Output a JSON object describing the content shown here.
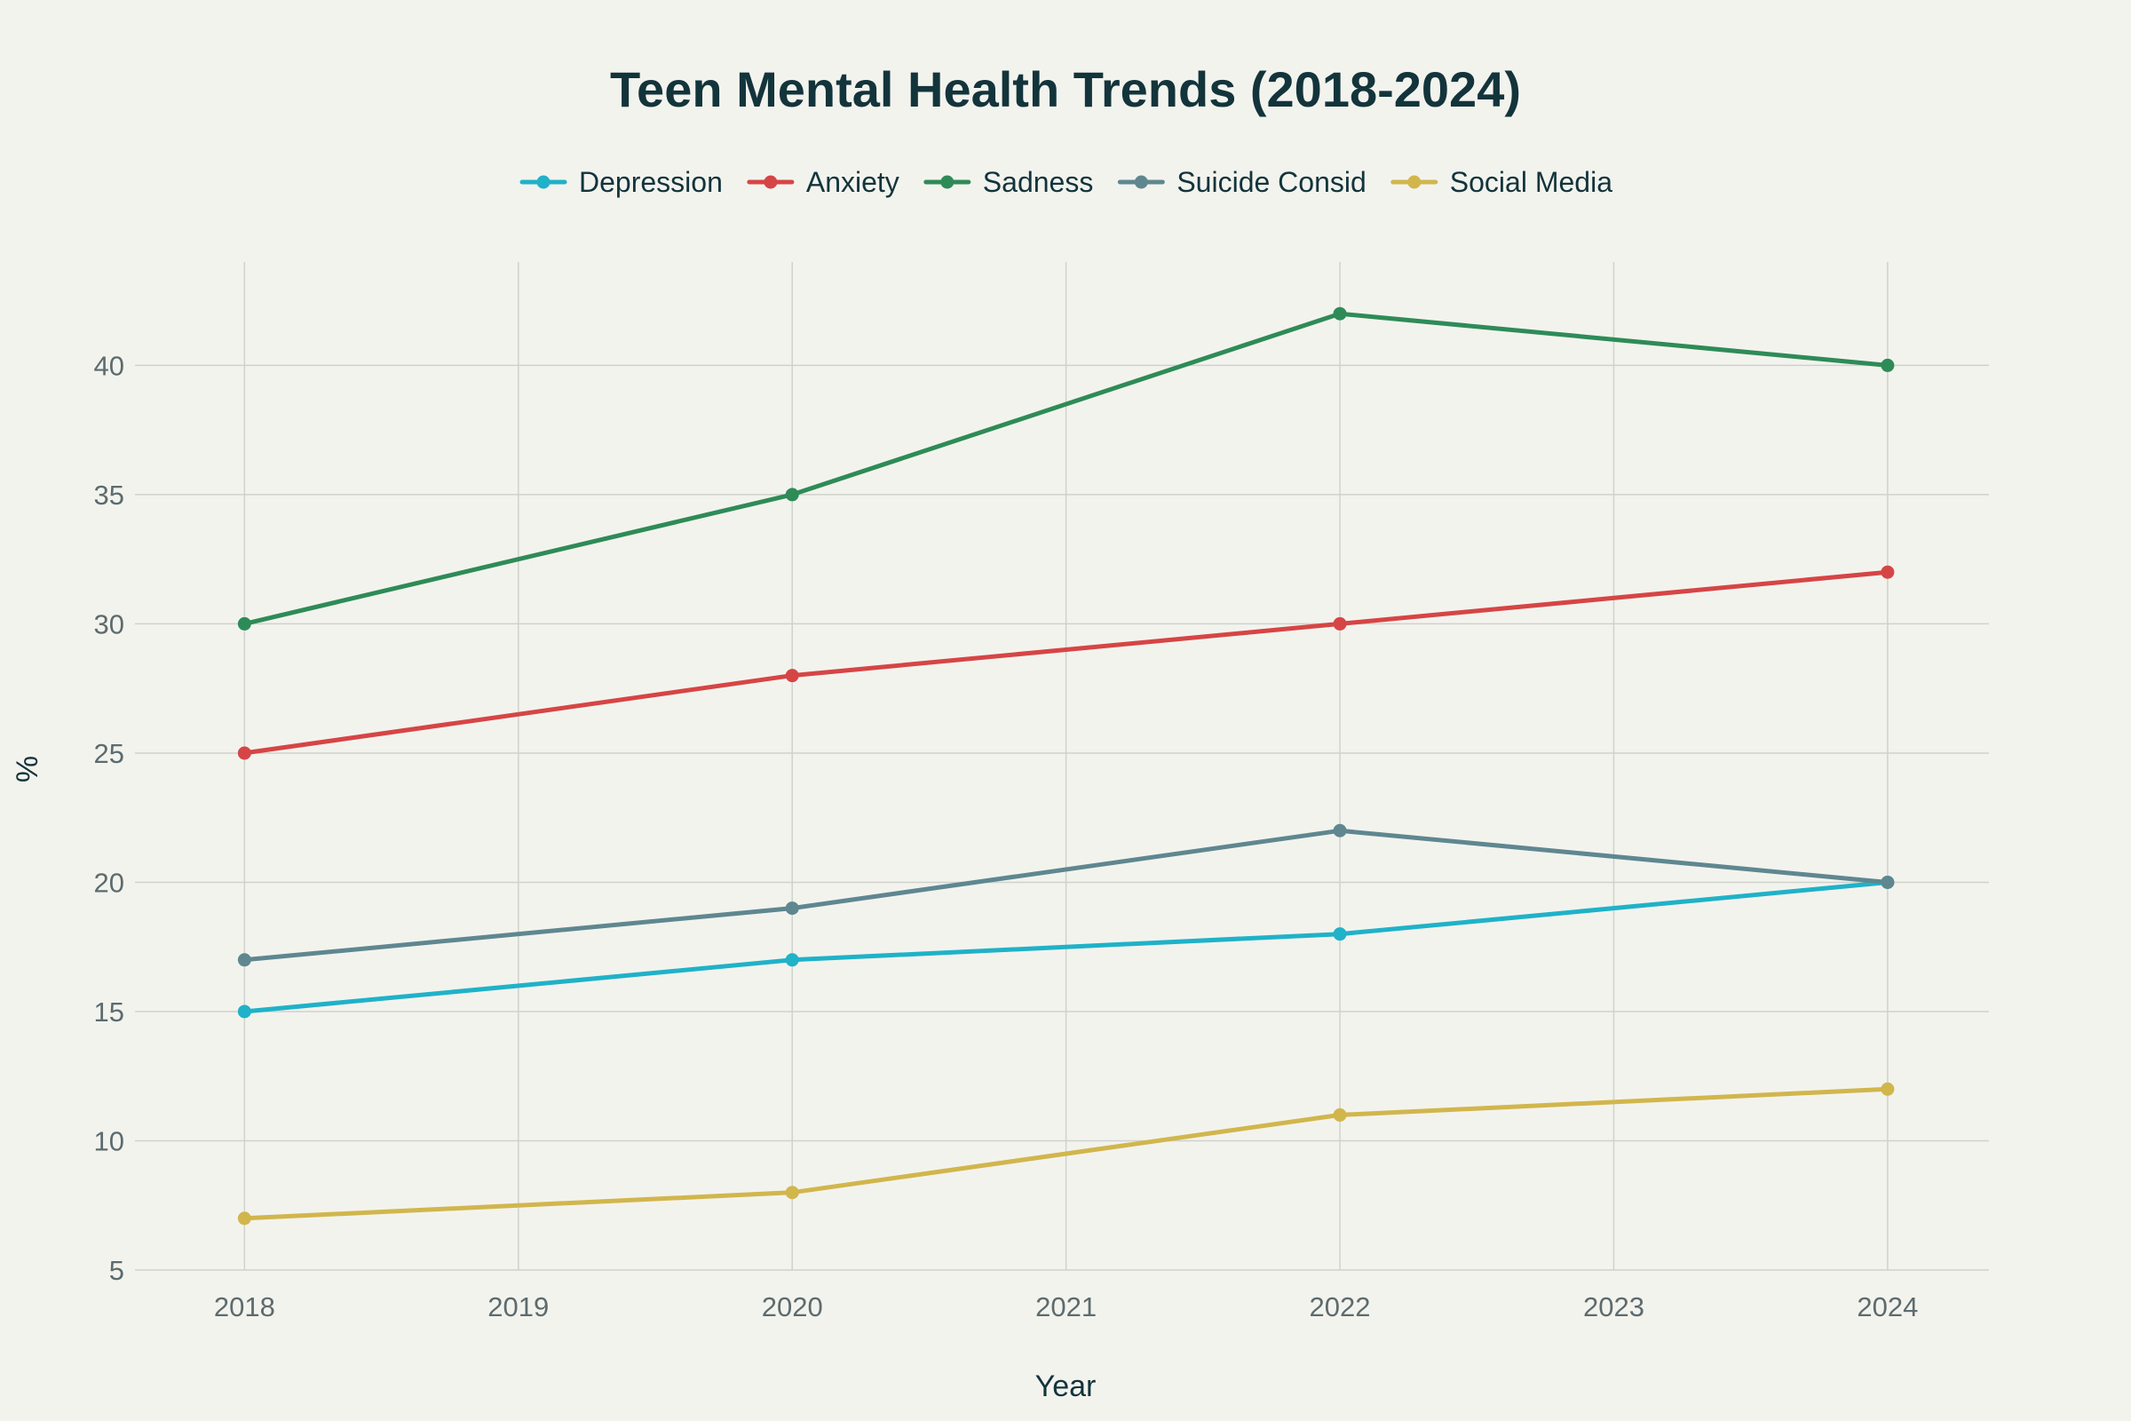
{
  "chart_data": {
    "type": "line",
    "title": "Teen Mental Health Trends (2018-2024)",
    "xlabel": "Year",
    "ylabel": "%",
    "x": [
      2018,
      2020,
      2022,
      2024
    ],
    "xticks": [
      "2018",
      "2019",
      "2020",
      "2021",
      "2022",
      "2023",
      "2024"
    ],
    "yticks": [
      "5",
      "10",
      "15",
      "20",
      "25",
      "30",
      "35",
      "40"
    ],
    "xlim": [
      2017.6,
      2024.37
    ],
    "ylim": [
      5,
      44
    ],
    "grid": true,
    "legend_position": "top",
    "series": [
      {
        "name": "Depression",
        "color": "#1fb2c8",
        "values": [
          15,
          17,
          18,
          20
        ]
      },
      {
        "name": "Anxiety",
        "color": "#d64545",
        "values": [
          25,
          28,
          30,
          32
        ]
      },
      {
        "name": "Sadness",
        "color": "#2e8b57",
        "values": [
          30,
          35,
          42,
          40
        ]
      },
      {
        "name": "Suicide Consid",
        "color": "#5f8790",
        "values": [
          17,
          19,
          22,
          20
        ]
      },
      {
        "name": "Social Media",
        "color": "#d1b64c",
        "values": [
          7,
          8,
          11,
          12
        ]
      }
    ]
  },
  "colors": {
    "background": "#f3f3ee",
    "title": "#13343b",
    "tick": "#5c6b6e",
    "grid": "#cfd2cc"
  }
}
